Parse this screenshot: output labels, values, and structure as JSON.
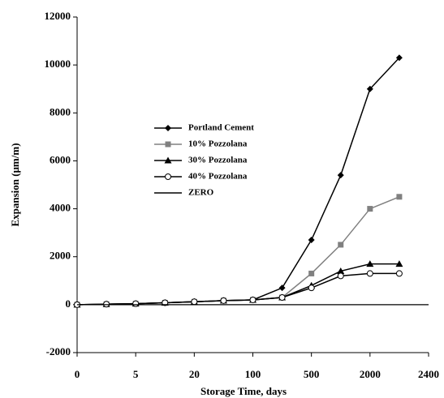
{
  "chart_data": {
    "type": "line",
    "x_label": "Storage Time, days",
    "y_label": "Expansion (μm/m)",
    "categories": [
      "0",
      null,
      "5",
      null,
      "20",
      null,
      "100",
      null,
      "500",
      null,
      "2000",
      null,
      "2400"
    ],
    "ylim": [
      -2000,
      12000
    ],
    "yticks": [
      -2000,
      0,
      2000,
      4000,
      6000,
      8000,
      10000,
      12000
    ],
    "grid": false,
    "legend": "center-left",
    "series": [
      {
        "name": "Portland Cement",
        "color": "#000000",
        "marker": "diamond",
        "values": [
          0,
          20,
          40,
          80,
          120,
          170,
          200,
          700,
          2700,
          5400,
          9000,
          10300,
          null
        ]
      },
      {
        "name": "10% Pozzolana",
        "color": "#808080",
        "marker": "square",
        "values": [
          0,
          20,
          40,
          80,
          120,
          170,
          200,
          300,
          1300,
          2500,
          4000,
          4500,
          null
        ]
      },
      {
        "name": "30% Pozzolana",
        "color": "#000000",
        "marker": "triangle",
        "values": [
          0,
          20,
          40,
          80,
          120,
          170,
          200,
          300,
          800,
          1400,
          1700,
          1700,
          null
        ]
      },
      {
        "name": "40% Pozzolana",
        "color": "#000000",
        "marker": "circle",
        "values": [
          0,
          20,
          40,
          80,
          120,
          170,
          200,
          300,
          700,
          1200,
          1300,
          1300,
          null
        ]
      },
      {
        "name": "ZERO",
        "color": "#000000",
        "marker": "none",
        "values": [
          0,
          0,
          0,
          0,
          0,
          0,
          0,
          0,
          0,
          0,
          0,
          0,
          0
        ]
      }
    ]
  }
}
